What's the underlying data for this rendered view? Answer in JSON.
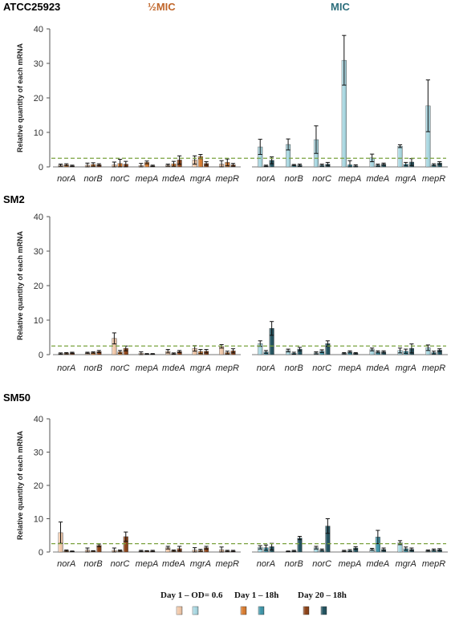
{
  "chart_data": [
    {
      "type": "bar",
      "title": "ATCC25923",
      "groups": [
        {
          "label": "½MIC",
          "color": "#c0662a",
          "categories": [
            "norA",
            "norB",
            "norC",
            "mepA",
            "mdeA",
            "mgrA",
            "mepR"
          ],
          "series": [
            {
              "values": [
                0.5,
                0.5,
                0.6,
                0.4,
                0.5,
                2.0,
                0.8
              ],
              "errors": [
                0.3,
                0.6,
                0.8,
                0.6,
                0.3,
                1.2,
                1.0
              ]
            },
            {
              "values": [
                0.6,
                0.7,
                1.0,
                1.3,
                0.9,
                3.0,
                1.3
              ],
              "errors": [
                0.3,
                0.5,
                1.2,
                0.4,
                0.7,
                0.6,
                1.0
              ]
            },
            {
              "values": [
                0.3,
                0.6,
                0.8,
                0.3,
                2.0,
                1.0,
                0.6
              ],
              "errors": [
                0.2,
                0.3,
                0.8,
                0.2,
                1.2,
                0.5,
                0.4
              ]
            }
          ]
        },
        {
          "label": "MIC",
          "color": "#2c6e7c",
          "categories": [
            "norA",
            "norB",
            "norC",
            "mepA",
            "mdeA",
            "mgrA",
            "mepR"
          ],
          "series": [
            {
              "values": [
                5.8,
                6.5,
                7.9,
                30.9,
                2.6,
                6.0,
                17.7
              ],
              "errors": [
                2.2,
                1.6,
                4.0,
                7.2,
                1.1,
                0.4,
                7.5
              ]
            },
            {
              "values": [
                0.3,
                0.5,
                0.5,
                0.6,
                0.5,
                0.8,
                0.6
              ],
              "errors": [
                0.2,
                0.2,
                0.3,
                1.2,
                0.3,
                0.5,
                0.3
              ]
            },
            {
              "values": [
                1.9,
                0.5,
                0.8,
                0.3,
                0.8,
                1.4,
                1.1
              ],
              "errors": [
                1.0,
                0.3,
                0.5,
                0.3,
                0.3,
                1.0,
                0.4
              ]
            }
          ]
        }
      ]
    },
    {
      "type": "bar",
      "title": "SM2",
      "groups": [
        {
          "categories": [
            "norA",
            "norB",
            "norC",
            "mepA",
            "mdeA",
            "mgrA",
            "mepR"
          ],
          "series": [
            {
              "values": [
                0.3,
                0.5,
                4.7,
                0.4,
                1.0,
                1.8,
                2.4
              ],
              "errors": [
                0.2,
                0.2,
                1.6,
                0.4,
                0.5,
                0.8,
                0.5
              ]
            },
            {
              "values": [
                0.4,
                0.6,
                0.8,
                0.2,
                0.3,
                0.9,
                0.6
              ],
              "errors": [
                0.2,
                0.2,
                0.4,
                0.1,
                0.2,
                0.6,
                0.4
              ]
            },
            {
              "values": [
                0.5,
                0.9,
                1.8,
                0.2,
                0.9,
                1.0,
                1.1
              ],
              "errors": [
                0.2,
                0.3,
                0.7,
                0.1,
                0.3,
                0.5,
                0.6
              ]
            }
          ]
        },
        {
          "categories": [
            "norA",
            "norB",
            "norC",
            "mepA",
            "mdeA",
            "mgrA",
            "mepR"
          ],
          "series": [
            {
              "values": [
                3.2,
                1.2,
                0.5,
                0.4,
                1.5,
                1.2,
                2.0
              ],
              "errors": [
                0.8,
                0.4,
                0.3,
                0.2,
                0.4,
                0.7,
                0.8
              ]
            },
            {
              "values": [
                0.8,
                0.4,
                1.0,
                0.8,
                0.8,
                1.0,
                0.6
              ],
              "errors": [
                0.4,
                0.3,
                0.4,
                0.3,
                0.3,
                0.6,
                0.4
              ]
            },
            {
              "values": [
                7.6,
                1.6,
                3.2,
                0.4,
                0.8,
                1.8,
                1.3
              ],
              "errors": [
                2.0,
                0.5,
                0.8,
                0.2,
                0.3,
                1.3,
                0.4
              ]
            }
          ]
        }
      ]
    },
    {
      "type": "bar",
      "title": "SM50",
      "groups": [
        {
          "categories": [
            "norA",
            "norB",
            "norC",
            "mepA",
            "mdeA",
            "mgrA",
            "mepR"
          ],
          "series": [
            {
              "values": [
                5.8,
                0.6,
                0.5,
                0.3,
                1.3,
                0.6,
                0.7
              ],
              "errors": [
                3.2,
                0.6,
                0.7,
                0.2,
                0.4,
                0.7,
                0.8
              ]
            },
            {
              "values": [
                0.4,
                0.3,
                0.4,
                0.3,
                0.4,
                0.5,
                0.3
              ],
              "errors": [
                0.2,
                0.1,
                0.2,
                0.1,
                0.2,
                0.3,
                0.2
              ]
            },
            {
              "values": [
                0.2,
                2.0,
                4.6,
                0.3,
                1.0,
                1.3,
                0.3
              ],
              "errors": [
                0.1,
                0.4,
                1.4,
                0.2,
                0.7,
                0.4,
                0.2
              ]
            }
          ]
        },
        {
          "categories": [
            "norA",
            "norB",
            "norC",
            "mepA",
            "mdeA",
            "mgrA",
            "mepR"
          ],
          "series": [
            {
              "values": [
                1.4,
                0.2,
                1.3,
                0.3,
                0.8,
                2.8,
                0.4
              ],
              "errors": [
                0.5,
                0.1,
                0.4,
                0.2,
                0.3,
                0.6,
                0.2
              ]
            },
            {
              "values": [
                1.3,
                0.3,
                0.6,
                0.4,
                4.5,
                1.0,
                0.6
              ],
              "errors": [
                0.8,
                0.2,
                0.3,
                0.3,
                2.0,
                0.5,
                0.3
              ]
            },
            {
              "values": [
                1.6,
                4.2,
                7.8,
                1.2,
                0.8,
                0.8,
                0.7
              ],
              "errors": [
                1.0,
                0.5,
                2.2,
                0.4,
                0.4,
                0.4,
                0.3
              ]
            }
          ]
        }
      ]
    }
  ],
  "axes": {
    "ylabel": "Relative quantity of each mRNA",
    "ylim": [
      0,
      40
    ],
    "yticks": [
      0,
      10,
      20,
      30,
      40
    ],
    "threshold": 2.5,
    "threshold_color": "#7aa23e",
    "grid": false
  },
  "legend": {
    "placement": "bottom",
    "items": [
      {
        "label": "Day 1 – OD= 0.6",
        "swatch_half": "#f2c8a8",
        "swatch_full": "#a8d8e2"
      },
      {
        "label": "Day 1 – 18h",
        "swatch_half": "#d97a2c",
        "swatch_full": "#3c94a8"
      },
      {
        "label": "Day 20 – 18h",
        "swatch_half": "#8a3e12",
        "swatch_full": "#1d4f5c"
      }
    ]
  },
  "palette": {
    "half": [
      "#f2c8a8",
      "#d97a2c",
      "#8a3e12"
    ],
    "full": [
      "#a8d8e2",
      "#3c94a8",
      "#1d4f5c"
    ]
  }
}
